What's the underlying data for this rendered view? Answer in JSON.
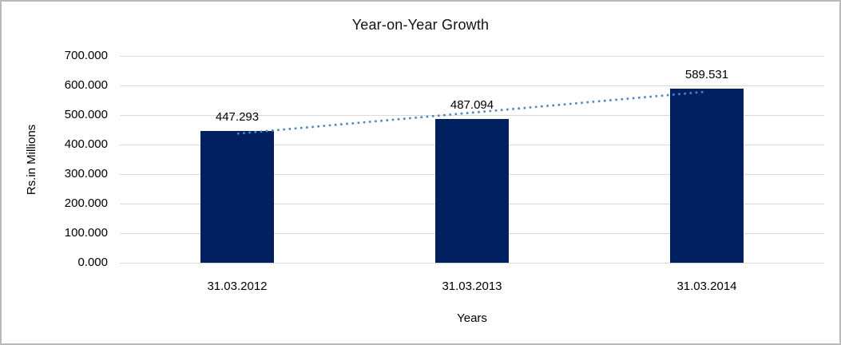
{
  "chart_data": {
    "type": "bar",
    "title": "Year-on-Year Growth",
    "xlabel": "Years",
    "ylabel": "Rs.in Millions",
    "categories": [
      "31.03.2012",
      "31.03.2013",
      "31.03.2014"
    ],
    "values": [
      447.293,
      487.094,
      589.531
    ],
    "data_labels": [
      "447.293",
      "487.094",
      "589.531"
    ],
    "ylim": [
      0,
      700
    ],
    "yticks": [
      0,
      100,
      200,
      300,
      400,
      500,
      600,
      700
    ],
    "ytick_labels": [
      "0.000",
      "100.000",
      "200.000",
      "300.000",
      "400.000",
      "500.000",
      "600.000",
      "700.000"
    ],
    "grid": true,
    "legend": "none",
    "trendline": {
      "type": "linear",
      "style": "dotted"
    }
  },
  "colors": {
    "bar": "#002060",
    "trendline": "#4a86c8",
    "gridline": "#d9d9d9",
    "text": "#000000",
    "border": "#b9b9b9",
    "background": "#ffffff"
  }
}
